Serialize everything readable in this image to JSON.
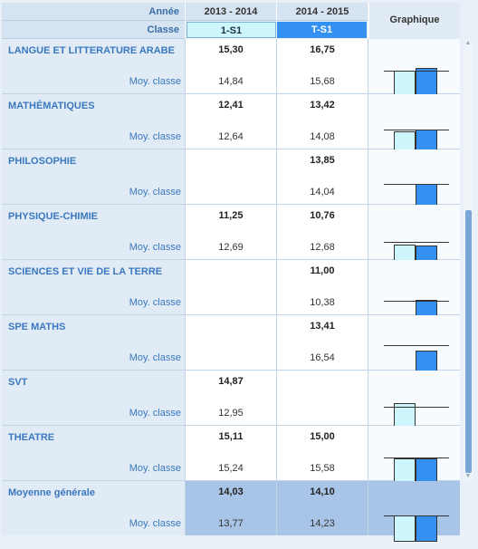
{
  "header": {
    "year_label": "Année",
    "class_label": "Classe",
    "graph_label": "Graphique",
    "years": [
      "2013 - 2014",
      "2014 - 2015"
    ],
    "classes": [
      "1-S1",
      "T-S1"
    ]
  },
  "moy_label": "Moy. classe",
  "colors": {
    "col1": "#ccf6fb",
    "col2": "#3591f1",
    "general_row": "#a8c4e6",
    "subject_text": "#3a78bf"
  },
  "rows": [
    {
      "subject": "LANGUE ET LITTERATURE ARABE",
      "notes": [
        "15,30",
        "16,75"
      ],
      "moys": [
        "14,84",
        "15,68"
      ]
    },
    {
      "subject": "MATHÉMATIQUES",
      "notes": [
        "12,41",
        "13,42"
      ],
      "moys": [
        "12,64",
        "14,08"
      ]
    },
    {
      "subject": "PHILOSOPHIE",
      "notes": [
        "",
        "13,85"
      ],
      "moys": [
        "",
        "14,04"
      ]
    },
    {
      "subject": "PHYSIQUE-CHIMIE",
      "notes": [
        "11,25",
        "10,76"
      ],
      "moys": [
        "12,69",
        "12,68"
      ]
    },
    {
      "subject": "SCIENCES ET VIE DE LA TERRE",
      "notes": [
        "",
        "11,00"
      ],
      "moys": [
        "",
        "10,38"
      ]
    },
    {
      "subject": "SPE MATHS",
      "notes": [
        "",
        "13,41"
      ],
      "moys": [
        "",
        "16,54"
      ]
    },
    {
      "subject": "SVT",
      "notes": [
        "14,87",
        ""
      ],
      "moys": [
        "12,95",
        ""
      ]
    },
    {
      "subject": "THEATRE",
      "notes": [
        "15,11",
        "15,00"
      ],
      "moys": [
        "15,24",
        "15,58"
      ]
    },
    {
      "subject": "Moyenne générale",
      "notes": [
        "14,03",
        "14,10"
      ],
      "moys": [
        "13,77",
        "14,23"
      ],
      "general": true
    }
  ]
}
